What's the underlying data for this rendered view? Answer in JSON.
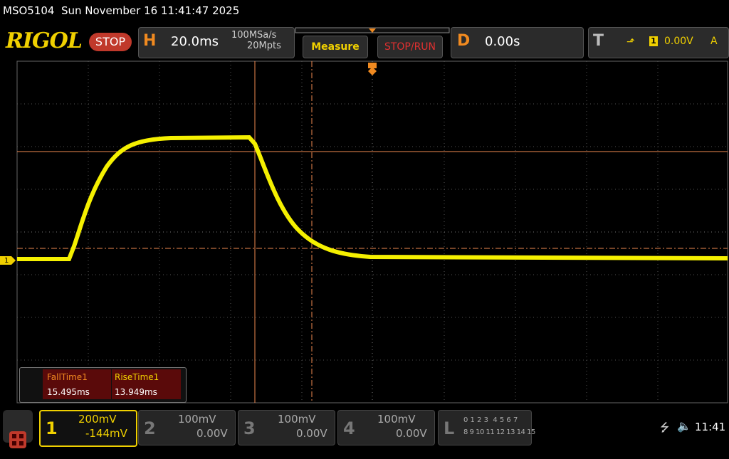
{
  "status_bar": {
    "title": "MSO5104  Sun November 16 11:41:47 2025"
  },
  "toolbar": {
    "logo": "RIGOL",
    "run_state": "STOP",
    "horizontal": {
      "label": "H",
      "timebase": "20.0ms",
      "sample_rate": "100MSa/s",
      "memory_depth": "20Mpts"
    },
    "measure_button": "Measure",
    "stop_run_button": "STOP/RUN",
    "delay": {
      "label": "D",
      "value": "0.00s"
    },
    "trigger": {
      "label": "T",
      "source": "1",
      "level": "0.00V",
      "mode": "A"
    }
  },
  "screen": {
    "channel_marker": "1"
  },
  "measurements": {
    "headers": [
      "FallTime1",
      "RiseTime1"
    ],
    "values": [
      "15.495ms",
      "13.949ms"
    ]
  },
  "channels": [
    {
      "number": "1",
      "scale": "200mV",
      "offset": "-144mV"
    },
    {
      "number": "2",
      "scale": "100mV",
      "offset": "0.00V"
    },
    {
      "number": "3",
      "scale": "100mV",
      "offset": "0.00V"
    },
    {
      "number": "4",
      "scale": "100mV",
      "offset": "0.00V"
    }
  ],
  "logic": {
    "label": "L",
    "row1": "0 1 2 3  4 5 6 7",
    "row2": "8 9 10 11 12 13 14 15"
  },
  "system": {
    "time": "11:41"
  }
}
